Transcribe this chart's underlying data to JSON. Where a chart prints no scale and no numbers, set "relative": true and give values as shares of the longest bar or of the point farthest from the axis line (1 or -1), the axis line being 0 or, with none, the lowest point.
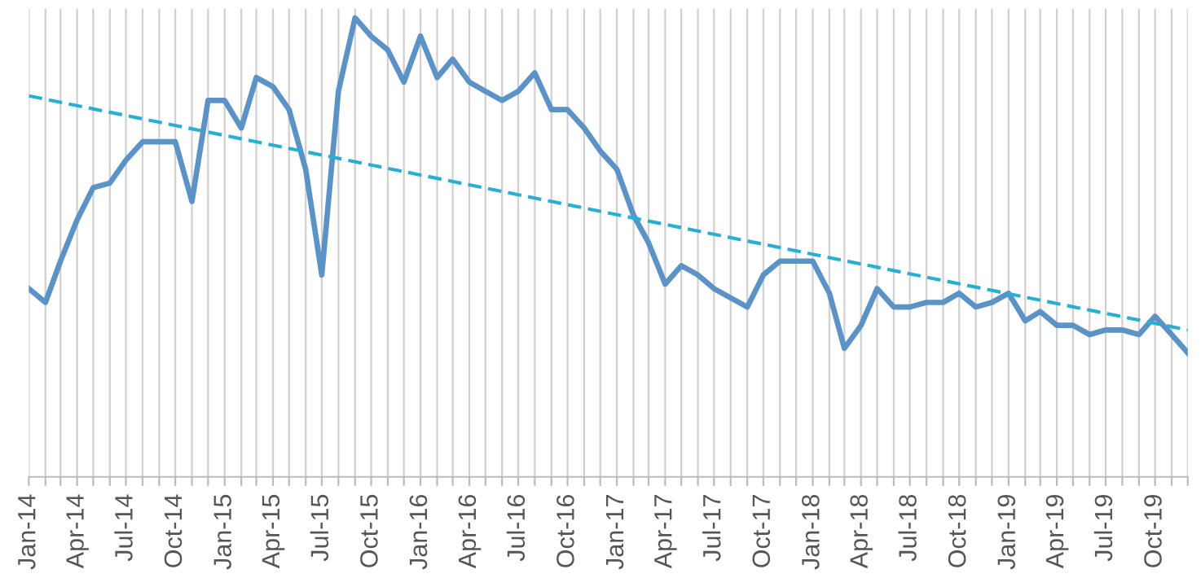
{
  "chart_data": {
    "type": "line",
    "relative": true,
    "grid": "x",
    "legend": false,
    "x": [
      "2014-01",
      "2014-02",
      "2014-03",
      "2014-04",
      "2014-05",
      "2014-06",
      "2014-07",
      "2014-08",
      "2014-09",
      "2014-10",
      "2014-11",
      "2014-12",
      "2015-01",
      "2015-02",
      "2015-03",
      "2015-04",
      "2015-05",
      "2015-06",
      "2015-07",
      "2015-08",
      "2015-09",
      "2015-10",
      "2015-11",
      "2015-12",
      "2016-01",
      "2016-02",
      "2016-03",
      "2016-04",
      "2016-05",
      "2016-06",
      "2016-07",
      "2016-08",
      "2016-09",
      "2016-10",
      "2016-11",
      "2016-12",
      "2017-01",
      "2017-02",
      "2017-03",
      "2017-04",
      "2017-05",
      "2017-06",
      "2017-07",
      "2017-08",
      "2017-09",
      "2017-10",
      "2017-11",
      "2017-12",
      "2018-01",
      "2018-02",
      "2018-03",
      "2018-04",
      "2018-05",
      "2018-06",
      "2018-07",
      "2018-08",
      "2018-09",
      "2018-10",
      "2018-11",
      "2018-12",
      "2019-01",
      "2019-02",
      "2019-03",
      "2019-04",
      "2019-05",
      "2019-06",
      "2019-07",
      "2019-08",
      "2019-09",
      "2019-10",
      "2019-11",
      "2019-12"
    ],
    "xlim": [
      "2014-01",
      "2019-12"
    ],
    "xticks": [
      {
        "value": "2014-01",
        "label": "Jan-14"
      },
      {
        "value": "2014-02",
        "label": null
      },
      {
        "value": "2014-03",
        "label": null
      },
      {
        "value": "2014-04",
        "label": "Apr-14"
      },
      {
        "value": "2014-05",
        "label": null
      },
      {
        "value": "2014-06",
        "label": null
      },
      {
        "value": "2014-07",
        "label": "Jul-14"
      },
      {
        "value": "2014-08",
        "label": null
      },
      {
        "value": "2014-09",
        "label": null
      },
      {
        "value": "2014-10",
        "label": "Oct-14"
      },
      {
        "value": "2014-11",
        "label": null
      },
      {
        "value": "2014-12",
        "label": null
      },
      {
        "value": "2015-01",
        "label": "Jan-15"
      },
      {
        "value": "2015-02",
        "label": null
      },
      {
        "value": "2015-03",
        "label": null
      },
      {
        "value": "2015-04",
        "label": "Apr-15"
      },
      {
        "value": "2015-05",
        "label": null
      },
      {
        "value": "2015-06",
        "label": null
      },
      {
        "value": "2015-07",
        "label": "Jul-15"
      },
      {
        "value": "2015-08",
        "label": null
      },
      {
        "value": "2015-09",
        "label": null
      },
      {
        "value": "2015-10",
        "label": "Oct-15"
      },
      {
        "value": "2015-11",
        "label": null
      },
      {
        "value": "2015-12",
        "label": null
      },
      {
        "value": "2016-01",
        "label": "Jan-16"
      },
      {
        "value": "2016-02",
        "label": null
      },
      {
        "value": "2016-03",
        "label": null
      },
      {
        "value": "2016-04",
        "label": "Apr-16"
      },
      {
        "value": "2016-05",
        "label": null
      },
      {
        "value": "2016-06",
        "label": null
      },
      {
        "value": "2016-07",
        "label": "Jul-16"
      },
      {
        "value": "2016-08",
        "label": null
      },
      {
        "value": "2016-09",
        "label": null
      },
      {
        "value": "2016-10",
        "label": "Oct-16"
      },
      {
        "value": "2016-11",
        "label": null
      },
      {
        "value": "2016-12",
        "label": null
      },
      {
        "value": "2017-01",
        "label": "Jan-17"
      },
      {
        "value": "2017-02",
        "label": null
      },
      {
        "value": "2017-03",
        "label": null
      },
      {
        "value": "2017-04",
        "label": "Apr-17"
      },
      {
        "value": "2017-05",
        "label": null
      },
      {
        "value": "2017-06",
        "label": null
      },
      {
        "value": "2017-07",
        "label": "Jul-17"
      },
      {
        "value": "2017-08",
        "label": null
      },
      {
        "value": "2017-09",
        "label": null
      },
      {
        "value": "2017-10",
        "label": "Oct-17"
      },
      {
        "value": "2017-11",
        "label": null
      },
      {
        "value": "2017-12",
        "label": null
      },
      {
        "value": "2018-01",
        "label": "Jan-18"
      },
      {
        "value": "2018-02",
        "label": null
      },
      {
        "value": "2018-03",
        "label": null
      },
      {
        "value": "2018-04",
        "label": "Apr-18"
      },
      {
        "value": "2018-05",
        "label": null
      },
      {
        "value": "2018-06",
        "label": null
      },
      {
        "value": "2018-07",
        "label": "Jul-18"
      },
      {
        "value": "2018-08",
        "label": null
      },
      {
        "value": "2018-09",
        "label": null
      },
      {
        "value": "2018-10",
        "label": "Oct-18"
      },
      {
        "value": "2018-11",
        "label": null
      },
      {
        "value": "2018-12",
        "label": null
      },
      {
        "value": "2019-01",
        "label": "Jan-19"
      },
      {
        "value": "2019-02",
        "label": null
      },
      {
        "value": "2019-03",
        "label": null
      },
      {
        "value": "2019-04",
        "label": "Apr-19"
      },
      {
        "value": "2019-05",
        "label": null
      },
      {
        "value": "2019-06",
        "label": null
      },
      {
        "value": "2019-07",
        "label": "Jul-19"
      },
      {
        "value": "2019-08",
        "label": null
      },
      {
        "value": "2019-09",
        "label": null
      },
      {
        "value": "2019-10",
        "label": "Oct-19"
      },
      {
        "value": "2019-11",
        "label": null
      },
      {
        "value": "2019-12",
        "label": null
      }
    ],
    "series": [
      {
        "color": "#5b93c7",
        "line_style": "solid",
        "values": [
          0.41,
          0.38,
          0.47,
          0.56,
          0.63,
          0.64,
          0.69,
          0.73,
          0.73,
          0.73,
          0.6,
          0.82,
          0.82,
          0.76,
          0.87,
          0.85,
          0.8,
          0.67,
          0.44,
          0.84,
          1.0,
          0.96,
          0.93,
          0.86,
          0.96,
          0.87,
          0.91,
          0.86,
          0.84,
          0.82,
          0.84,
          0.88,
          0.8,
          0.8,
          0.76,
          0.71,
          0.67,
          0.57,
          0.51,
          0.42,
          0.46,
          0.44,
          0.41,
          0.39,
          0.37,
          0.44,
          0.47,
          0.47,
          0.47,
          0.4,
          0.28,
          0.33,
          0.41,
          0.37,
          0.37,
          0.38,
          0.38,
          0.4,
          0.37,
          0.38,
          0.4,
          0.34,
          0.36,
          0.33,
          0.33,
          0.31,
          0.32,
          0.32,
          0.31,
          0.35,
          0.31,
          0.27
        ]
      },
      {
        "type": "line",
        "color": "#2aaed3",
        "line_style": "dashed",
        "x": [
          "2014-01",
          "2019-12"
        ],
        "values": [
          0.83,
          0.32
        ]
      }
    ]
  }
}
